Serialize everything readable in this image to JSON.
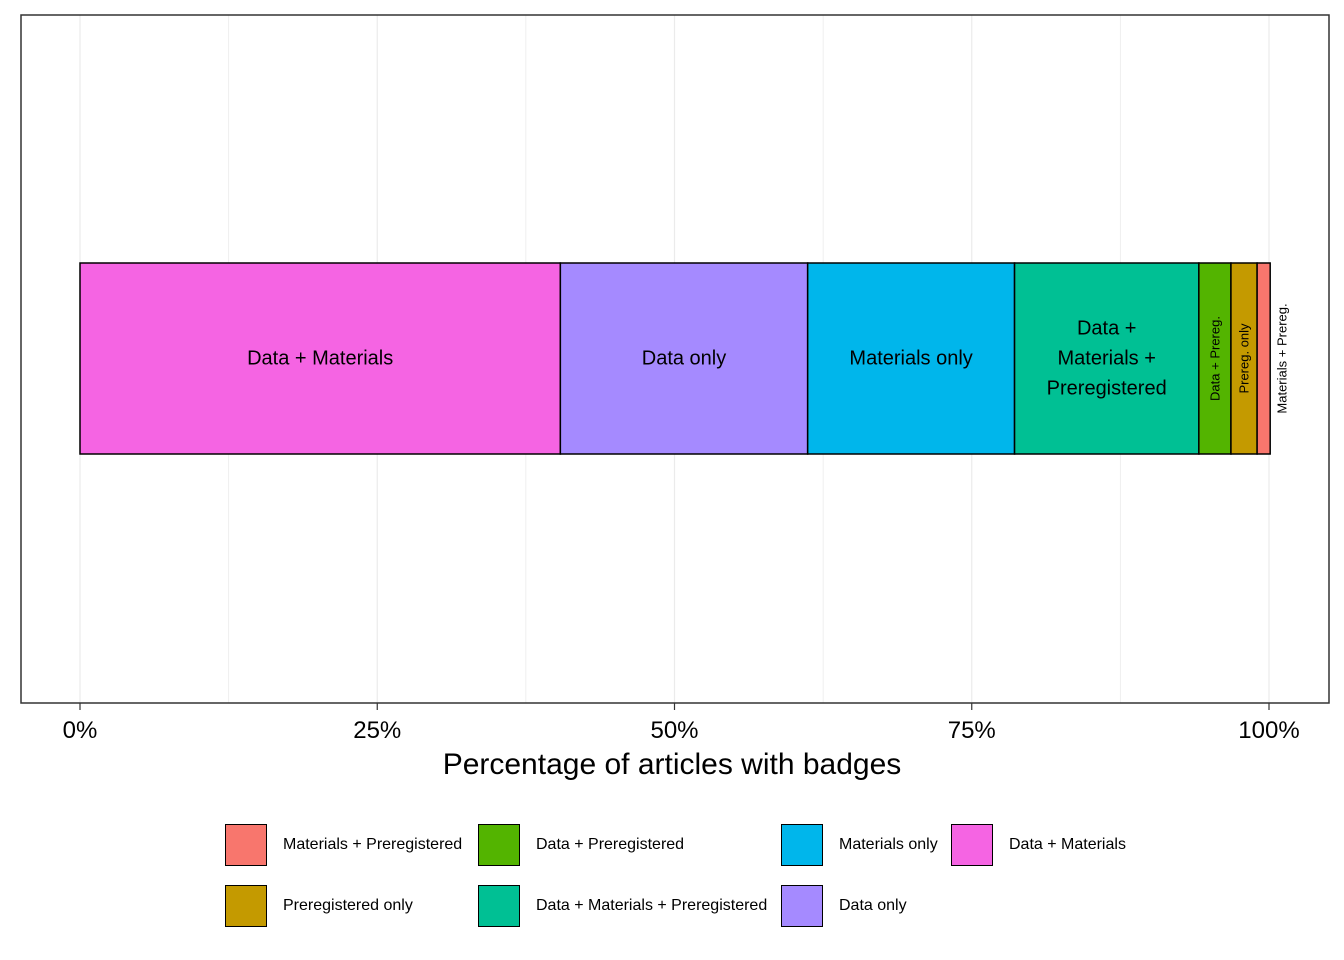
{
  "chart_data": {
    "type": "bar",
    "orientation": "horizontal-stacked",
    "title": "",
    "xlabel": "Percentage of articles with badges",
    "ylabel": "",
    "xlim": [
      0,
      100
    ],
    "x_ticks": [
      "0%",
      "25%",
      "50%",
      "75%",
      "100%"
    ],
    "grid": true,
    "legend_position": "bottom",
    "series": [
      {
        "name": "Data + Materials",
        "value": 40.4,
        "bar_label": "Data + Materials",
        "color": "#F564E3",
        "label_rotated": false
      },
      {
        "name": "Data only",
        "value": 20.8,
        "bar_label": "Data only",
        "color": "#A58AFF",
        "label_rotated": false
      },
      {
        "name": "Materials only",
        "value": 17.4,
        "bar_label": "Materials only",
        "color": "#00B6EB",
        "label_rotated": false
      },
      {
        "name": "Data + Materials + Preregistered",
        "value": 15.5,
        "bar_label": "Data + Materials + Preregistered",
        "bar_label_lines": [
          "Data +",
          "Materials +",
          "Preregistered"
        ],
        "color": "#00C094",
        "label_rotated": false
      },
      {
        "name": "Data + Preregistered",
        "value": 2.7,
        "bar_label": "Data + Prereg.",
        "color": "#53B400",
        "label_rotated": true
      },
      {
        "name": "Preregistered only",
        "value": 2.2,
        "bar_label": "Prereg. only",
        "color": "#C49A00",
        "label_rotated": true
      },
      {
        "name": "Materials + Preregistered",
        "value": 1.1,
        "bar_label": "Materials + Prereg.",
        "color": "#F8766D",
        "label_rotated": true,
        "label_outside": true
      }
    ]
  },
  "legend": {
    "rows": [
      [
        {
          "label": "Materials + Preregistered",
          "color": "#F8766D"
        },
        {
          "label": "Data + Preregistered",
          "color": "#53B400"
        },
        {
          "label": "Materials only",
          "color": "#00B6EB"
        },
        {
          "label": "Data + Materials",
          "color": "#F564E3"
        }
      ],
      [
        {
          "label": "Preregistered only",
          "color": "#C49A00"
        },
        {
          "label": "Data + Materials + Preregistered",
          "color": "#00C094"
        },
        {
          "label": "Data only",
          "color": "#A58AFF"
        }
      ]
    ]
  }
}
